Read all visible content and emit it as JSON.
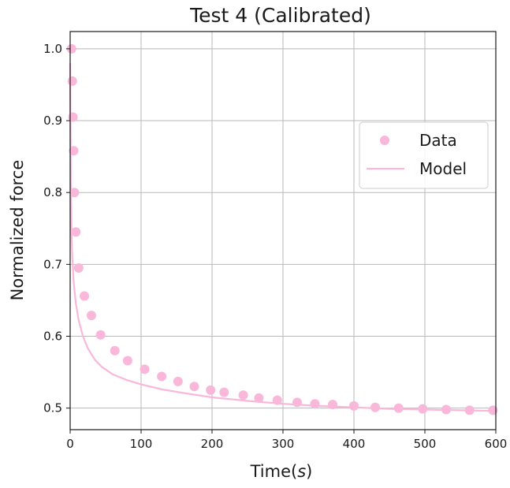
{
  "chart_data": {
    "type": "scatter",
    "title": "Test 4 (Calibrated)",
    "xlabel": "Time(s)",
    "ylabel": "Normalized force",
    "xlim": [
      0,
      600
    ],
    "ylim": [
      0.47,
      1.024
    ],
    "x_ticks": [
      0,
      100,
      200,
      300,
      400,
      500,
      600
    ],
    "y_ticks": [
      0.5,
      0.6,
      0.7,
      0.8,
      0.9,
      1.0
    ],
    "x_tick_labels": [
      "0",
      "100",
      "200",
      "300",
      "400",
      "500",
      "600"
    ],
    "y_tick_labels": [
      "0.5",
      "0.6",
      "0.7",
      "0.8",
      "0.9",
      "1.0"
    ],
    "grid": true,
    "legend_position": "right",
    "series": [
      {
        "name": "Data",
        "kind": "scatter",
        "color": "#f9b7d9",
        "x": [
          2,
          3,
          4,
          5,
          6,
          8,
          12,
          20,
          30,
          43,
          63,
          81,
          105,
          129,
          152,
          175,
          198,
          217,
          244,
          266,
          292,
          320,
          345,
          370,
          400,
          430,
          463,
          497,
          530,
          563,
          596
        ],
        "y": [
          1.0,
          0.955,
          0.905,
          0.858,
          0.8,
          0.745,
          0.695,
          0.656,
          0.629,
          0.602,
          0.58,
          0.566,
          0.554,
          0.544,
          0.537,
          0.53,
          0.525,
          0.522,
          0.518,
          0.514,
          0.511,
          0.508,
          0.506,
          0.505,
          0.503,
          0.501,
          0.5,
          0.499,
          0.498,
          0.497,
          0.497
        ]
      },
      {
        "name": "Model",
        "kind": "line",
        "color": "#f9b7d9",
        "x": [
          0,
          1,
          2,
          3,
          5,
          8,
          12,
          18,
          25,
          35,
          45,
          60,
          80,
          100,
          130,
          160,
          200,
          250,
          300,
          350,
          400,
          450,
          500,
          550,
          600
        ],
        "y": [
          0.98,
          0.8,
          0.745,
          0.71,
          0.675,
          0.646,
          0.622,
          0.6,
          0.583,
          0.567,
          0.557,
          0.547,
          0.539,
          0.533,
          0.526,
          0.521,
          0.515,
          0.51,
          0.506,
          0.503,
          0.501,
          0.499,
          0.498,
          0.497,
          0.496
        ]
      }
    ]
  }
}
